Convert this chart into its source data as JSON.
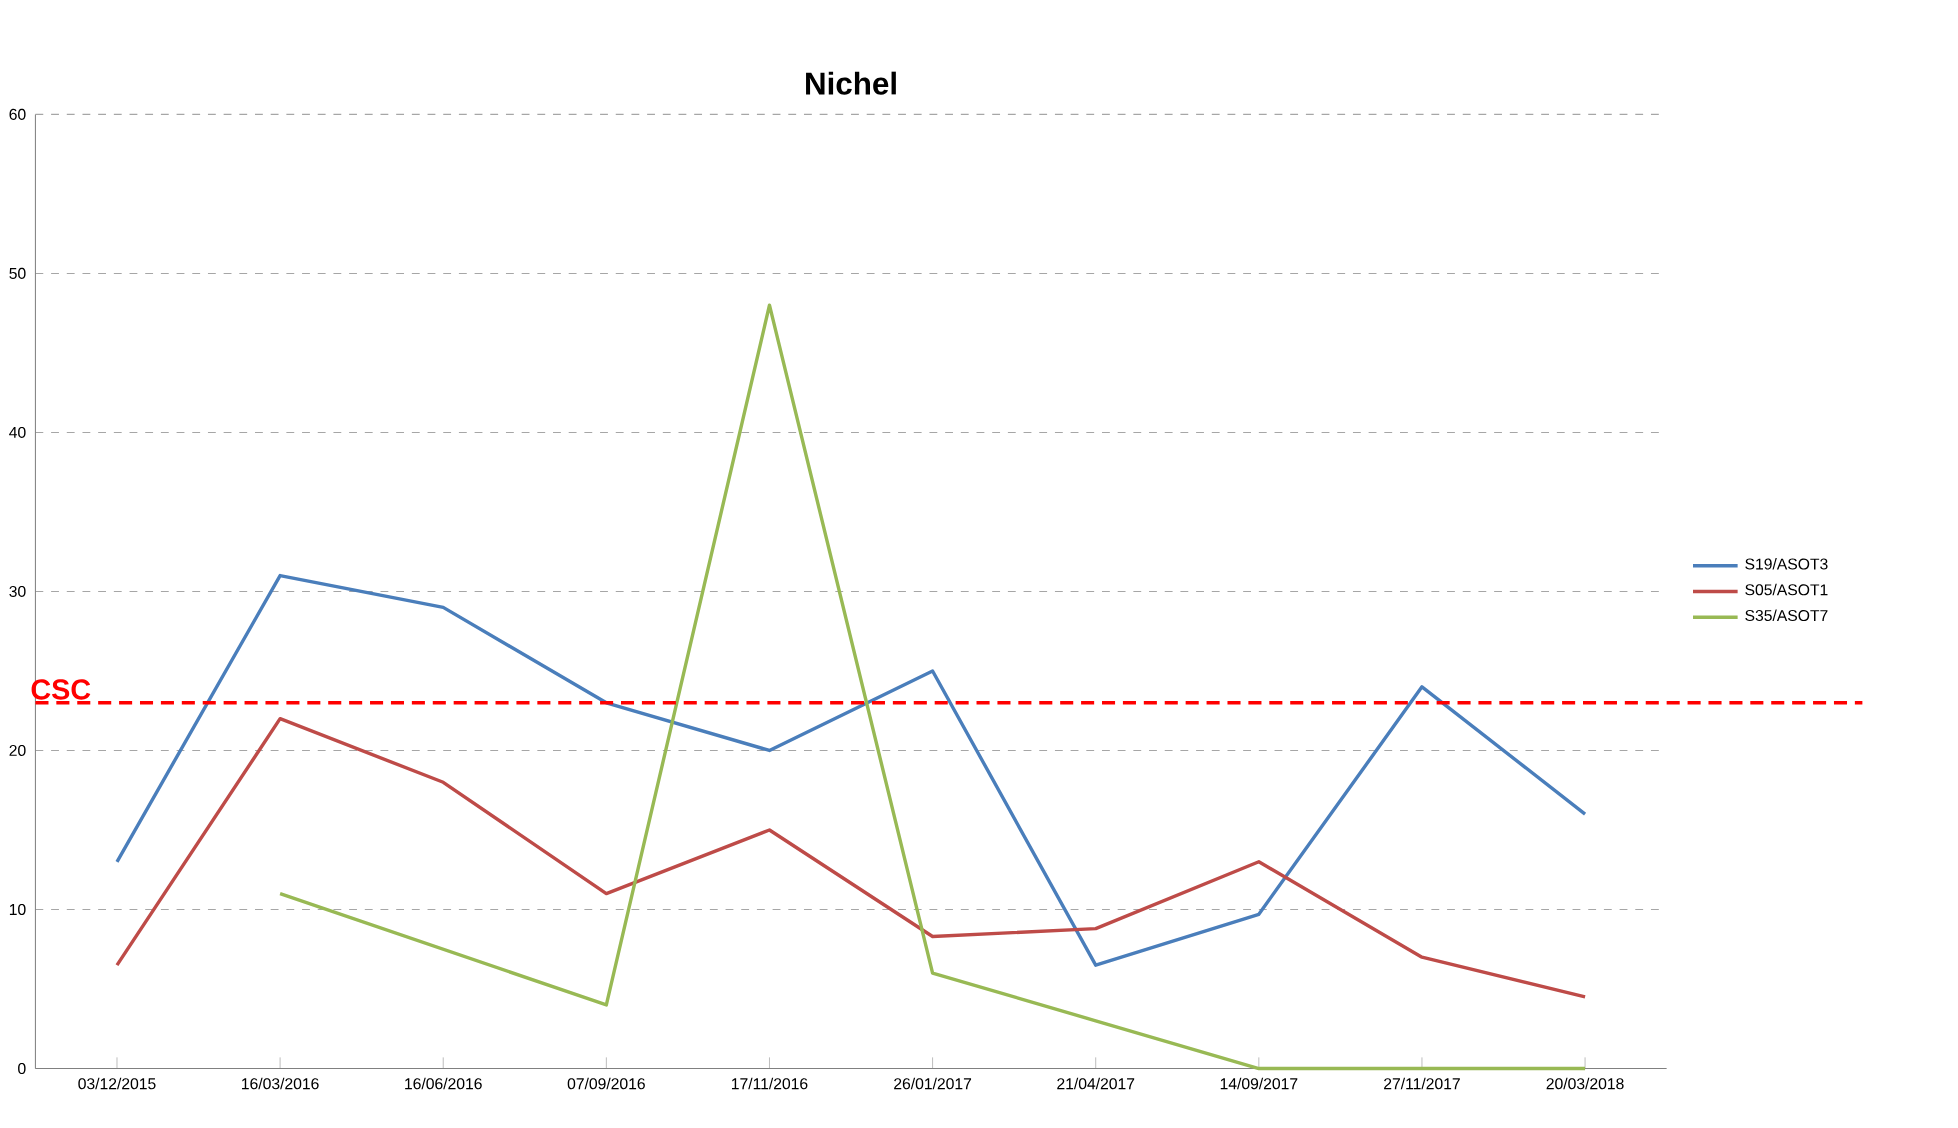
{
  "chart_data": {
    "type": "line",
    "title": "Nichel",
    "categories": [
      "03/12/2015",
      "16/03/2016",
      "16/06/2016",
      "07/09/2016",
      "17/11/2016",
      "26/01/2017",
      "21/04/2017",
      "14/09/2017",
      "27/11/2017",
      "20/03/2018"
    ],
    "series": [
      {
        "name": "S19/ASOT3",
        "color": "#4a7ebb",
        "values": [
          13,
          31,
          29,
          23,
          20,
          25,
          6.5,
          9.7,
          24,
          16
        ]
      },
      {
        "name": "S05/ASOT1",
        "color": "#be4b48",
        "values": [
          6.5,
          22,
          18,
          11,
          15,
          8.3,
          8.8,
          13,
          7,
          4.5
        ]
      },
      {
        "name": "S35/ASOT7",
        "color": "#98b954",
        "values": [
          null,
          11,
          7.5,
          4,
          48,
          6,
          3,
          0,
          0,
          0
        ]
      }
    ],
    "ylim": [
      0,
      60
    ],
    "yticks": [
      0,
      10,
      20,
      30,
      40,
      50,
      60
    ],
    "grid": "y",
    "legend": "right",
    "marker": "none",
    "line_style": "solid",
    "ref_lines": [
      {
        "axis": "y",
        "value": 23,
        "label": "CSC",
        "color": "#ff0000",
        "line_style": "dashed"
      }
    ]
  }
}
